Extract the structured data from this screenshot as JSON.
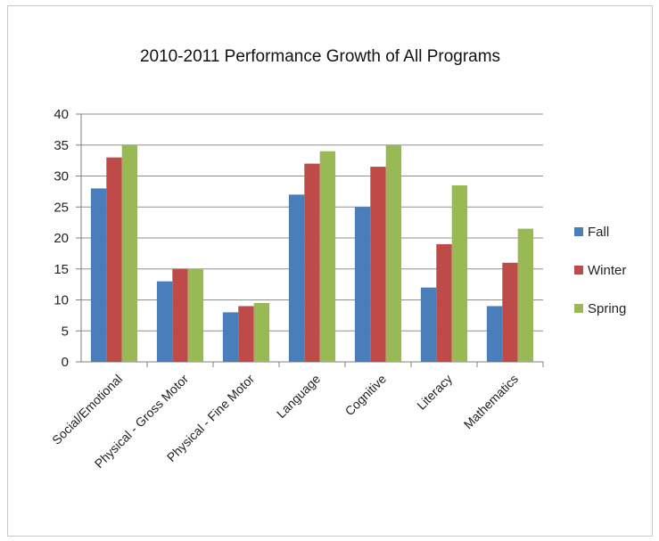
{
  "chart_data": {
    "type": "bar",
    "title": "2010-2011 Performance Growth of All Programs",
    "categories": [
      "Social/Emotional",
      "Physical - Gross Motor",
      "Physical - Fine Motor",
      "Language",
      "Cognitive",
      "Literacy",
      "Mathematics"
    ],
    "series": [
      {
        "name": "Fall",
        "color": "#4a7ebb",
        "values": [
          28,
          13,
          8,
          27,
          25,
          12,
          9
        ]
      },
      {
        "name": "Winter",
        "color": "#be4b48",
        "values": [
          33,
          15,
          9,
          32,
          31.5,
          19,
          16
        ]
      },
      {
        "name": "Spring",
        "color": "#98b954",
        "values": [
          35,
          15,
          9.5,
          34,
          35,
          28.5,
          21.5
        ]
      }
    ],
    "ylim": [
      0,
      40
    ],
    "yticks": [
      0,
      5,
      10,
      15,
      20,
      25,
      30,
      35,
      40
    ],
    "xlabel": "",
    "ylabel": "",
    "grid": true,
    "legend_position": "right"
  }
}
